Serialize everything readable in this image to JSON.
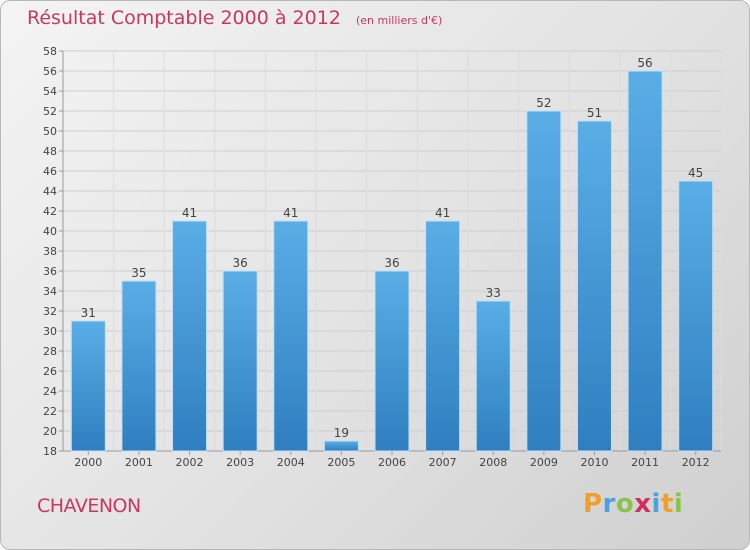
{
  "header": {
    "title": "Résultat Comptable 2000 à 2012",
    "subtitle": "(en milliers d'€)"
  },
  "footer": {
    "commune": "CHAVENON",
    "logo_text": "Proxiti"
  },
  "colors": {
    "accent": "#c8385f",
    "bar_top": "#5aaee6",
    "bar_bottom": "#2f7fc0",
    "axis": "#999999"
  },
  "chart_data": {
    "type": "bar",
    "categories": [
      "2000",
      "2001",
      "2002",
      "2003",
      "2004",
      "2005",
      "2006",
      "2007",
      "2008",
      "2009",
      "2010",
      "2011",
      "2012"
    ],
    "values": [
      31,
      35,
      41,
      36,
      41,
      19,
      36,
      41,
      33,
      52,
      51,
      56,
      45
    ],
    "title": "Résultat Comptable 2000 à 2012",
    "subtitle": "(en milliers d'€)",
    "xlabel": "",
    "ylabel": "",
    "ylim": [
      18,
      58
    ],
    "yticks": [
      18,
      20,
      22,
      24,
      26,
      28,
      30,
      32,
      34,
      36,
      38,
      40,
      42,
      44,
      46,
      48,
      50,
      52,
      54,
      56,
      58
    ],
    "grid": true,
    "legend": "none"
  }
}
